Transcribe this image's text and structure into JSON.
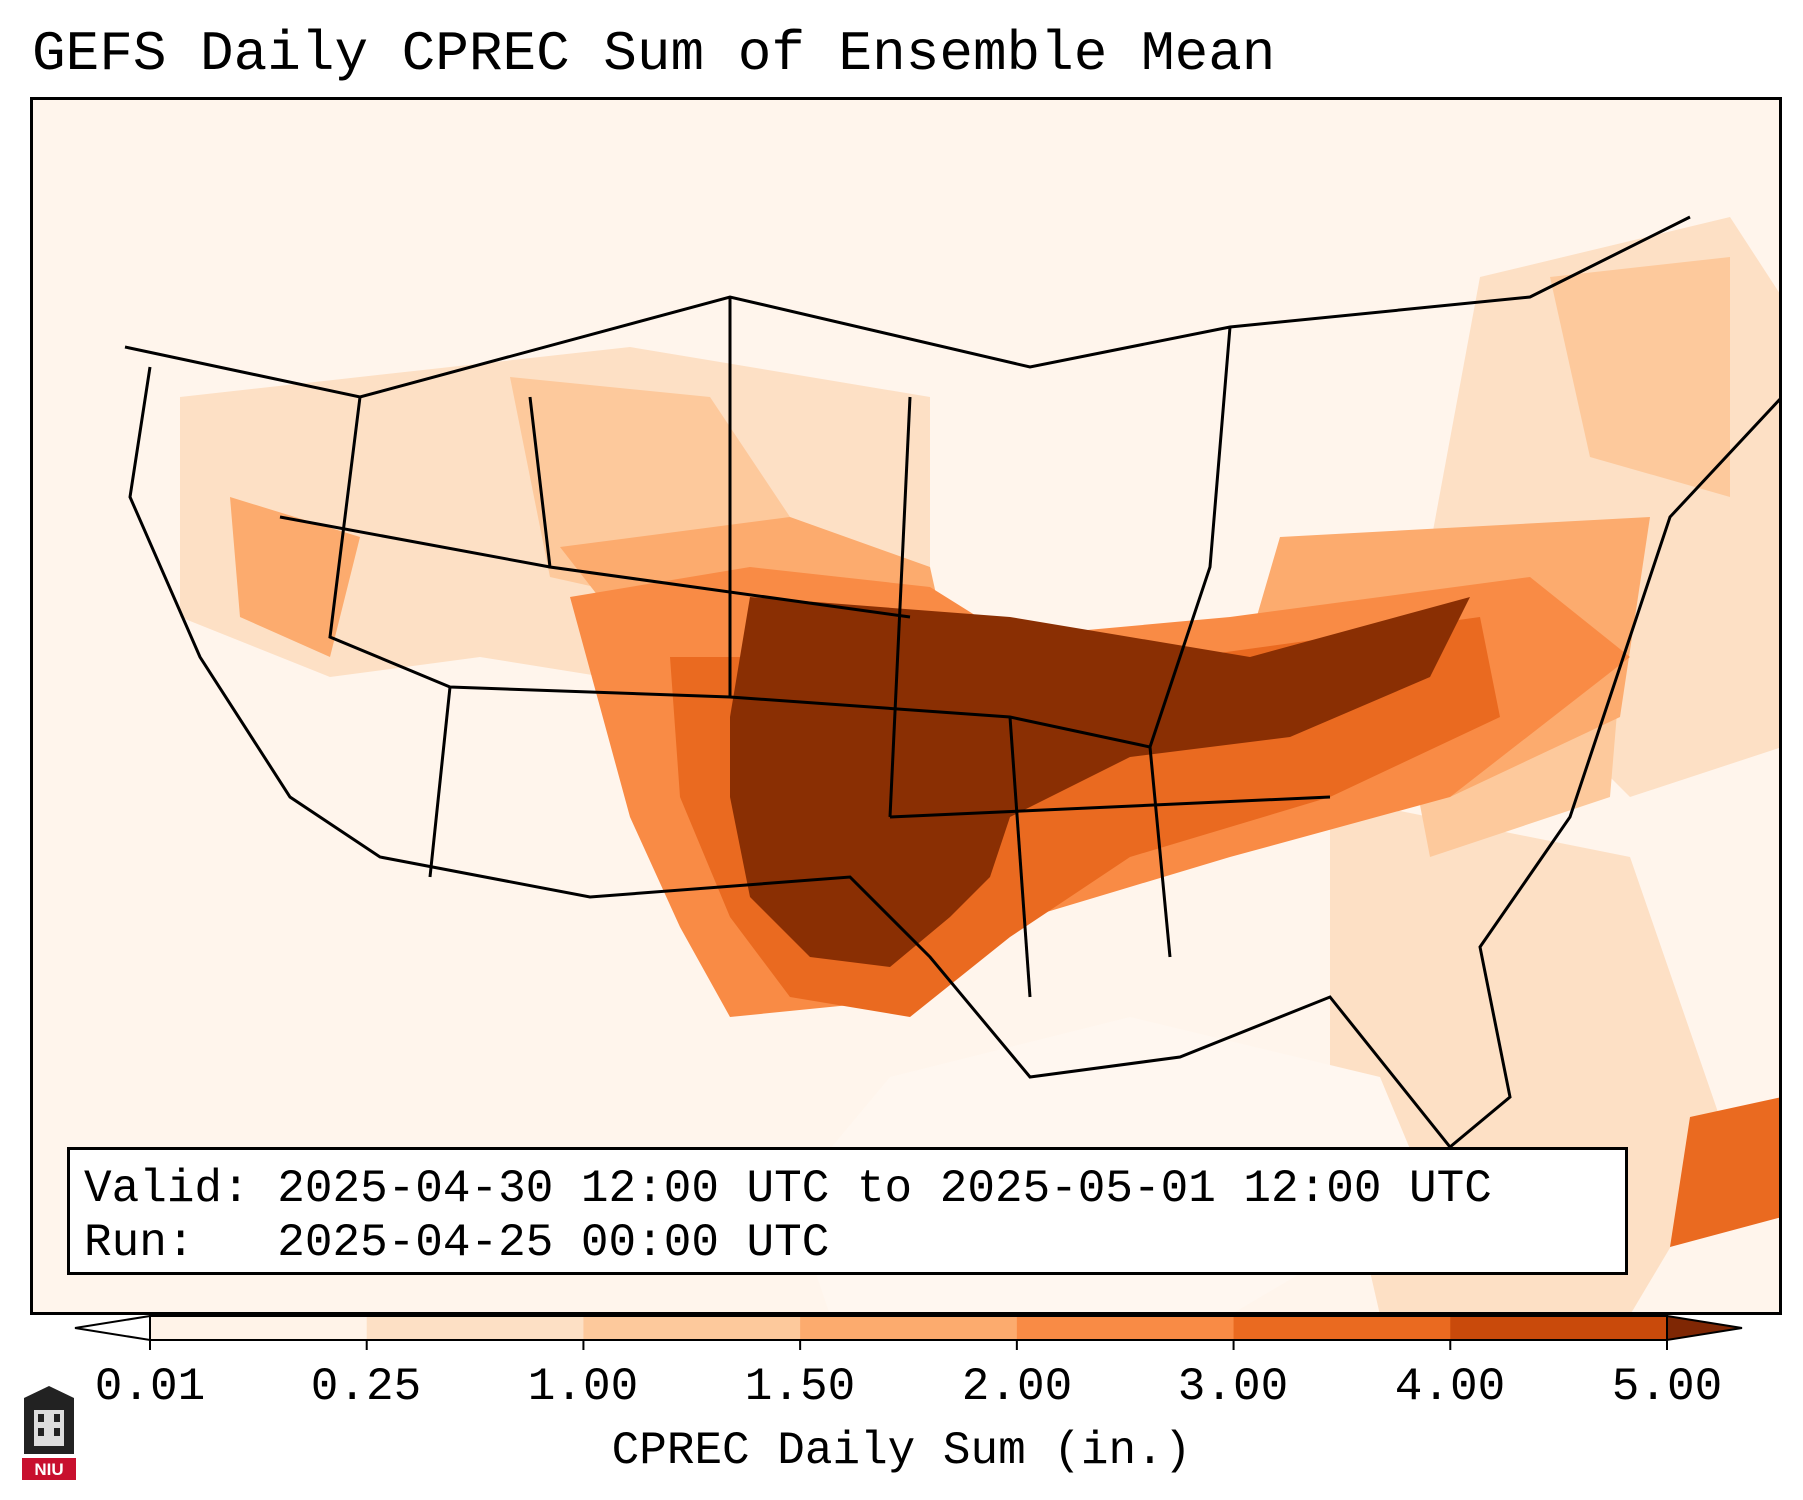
{
  "title": "GEFS Daily CPREC Sum of Ensemble Mean",
  "info": {
    "valid_label": "Valid:",
    "valid_value": "2025-04-30 12:00 UTC to 2025-05-01 12:00 UTC",
    "run_label": "Run:",
    "run_value": "2025-04-25 00:00 UTC"
  },
  "colorbar": {
    "label": "CPREC Daily Sum (in.)",
    "ticks": [
      "0.01",
      "0.25",
      "1.00",
      "1.50",
      "2.00",
      "3.00",
      "4.00",
      "5.00"
    ],
    "colors": [
      "#fff3e8",
      "#fde0c5",
      "#fdc99c",
      "#fcab6e",
      "#f98b45",
      "#ea6a20",
      "#c94a0b",
      "#8a2f03"
    ],
    "under_color": "#ffffff",
    "over_color": "#7f2704"
  },
  "logo": {
    "text": "NIU",
    "color": "#c8102e"
  },
  "map_colors": {
    "background": "#ffffff",
    "land_light": "#fff3e8",
    "level1": "#fde0c5",
    "level2": "#fdc99c",
    "level3": "#fcab6e",
    "level4": "#f98b45",
    "level5": "#ea6a20",
    "level6": "#8a2f03",
    "border": "#000000"
  }
}
